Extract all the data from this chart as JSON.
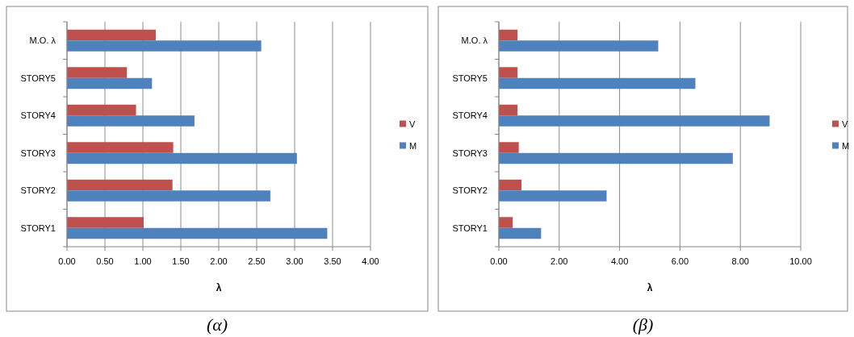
{
  "chart_data": [
    {
      "type": "bar",
      "orientation": "horizontal",
      "categories": [
        "M.O. λ",
        "STORY5",
        "STORY4",
        "STORY3",
        "STORY2",
        "STORY1"
      ],
      "series": [
        {
          "name": "V",
          "color": "#c0504d",
          "values": [
            1.17,
            0.79,
            0.91,
            1.4,
            1.39,
            1.01
          ]
        },
        {
          "name": "M",
          "color": "#4f81bd",
          "values": [
            2.56,
            1.12,
            1.68,
            3.03,
            2.68,
            3.43
          ]
        }
      ],
      "xlabel": "λ",
      "xlim": [
        0,
        4
      ],
      "xticks": [
        {
          "value": 0,
          "label": "0.00"
        },
        {
          "value": 0.5,
          "label": "0.50"
        },
        {
          "value": 1,
          "label": "1.00"
        },
        {
          "value": 1.5,
          "label": "1.50"
        },
        {
          "value": 2,
          "label": "2.00"
        },
        {
          "value": 2.5,
          "label": "2.50"
        },
        {
          "value": 3,
          "label": "3.00"
        },
        {
          "value": 3.5,
          "label": "3.50"
        },
        {
          "value": 4,
          "label": "4.00"
        }
      ],
      "grid": "x",
      "legend": "right",
      "annotations": [
        "(α)"
      ]
    },
    {
      "type": "bar",
      "orientation": "horizontal",
      "categories": [
        "M.O. λ",
        "STORY5",
        "STORY4",
        "STORY3",
        "STORY2",
        "STORY1"
      ],
      "series": [
        {
          "name": "V",
          "color": "#c0504d",
          "values": [
            0.62,
            0.62,
            0.62,
            0.66,
            0.75,
            0.46
          ]
        },
        {
          "name": "M",
          "color": "#4f81bd",
          "values": [
            5.28,
            6.51,
            8.97,
            7.75,
            3.57,
            1.4
          ]
        }
      ],
      "xlabel": "λ",
      "xlim": [
        0,
        10
      ],
      "xticks": [
        {
          "value": 0,
          "label": "0.00"
        },
        {
          "value": 2,
          "label": "2.00"
        },
        {
          "value": 4,
          "label": "4.00"
        },
        {
          "value": 6,
          "label": "6.00"
        },
        {
          "value": 8,
          "label": "8.00"
        },
        {
          "value": 10,
          "label": "10.00"
        }
      ],
      "grid": "x",
      "legend": "right",
      "annotations": [
        "(β)"
      ]
    }
  ]
}
